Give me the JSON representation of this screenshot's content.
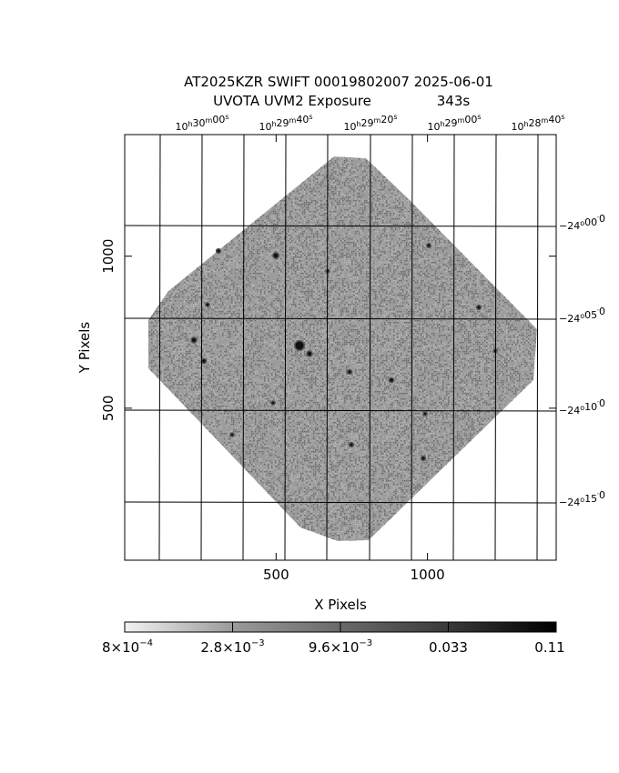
{
  "title": {
    "line1": "AT2025KZR SWIFT 00019802007 2025-06-01",
    "line2_label": "UVOTA UVM2 Exposure",
    "line2_value": "343s"
  },
  "axes": {
    "xlabel": "X Pixels",
    "ylabel": "Y Pixels",
    "x_ticks": [
      {
        "value": 500,
        "label": "500"
      },
      {
        "value": 1000,
        "label": "1000"
      }
    ],
    "y_ticks": [
      {
        "value": 500,
        "label": "500"
      },
      {
        "value": 1000,
        "label": "1000"
      }
    ],
    "x_range": [
      0,
      1425
    ],
    "y_range": [
      0,
      1400
    ]
  },
  "wcs": {
    "ra_labels": [
      {
        "h": "10",
        "m": "30",
        "s": "00"
      },
      {
        "h": "10",
        "m": "29",
        "s": "40"
      },
      {
        "h": "10",
        "m": "29",
        "s": "20"
      },
      {
        "h": "10",
        "m": "29",
        "s": "00"
      },
      {
        "h": "10",
        "m": "28",
        "s": "40"
      }
    ],
    "dec_labels": [
      {
        "deg": "−24",
        "arcmin": "00",
        "arcsec": "0"
      },
      {
        "deg": "−24",
        "arcmin": "05",
        "arcsec": "0"
      },
      {
        "deg": "−24",
        "arcmin": "10",
        "arcsec": "0"
      },
      {
        "deg": "−24",
        "arcmin": "15",
        "arcsec": "0"
      }
    ]
  },
  "colorbar": {
    "labels": [
      {
        "base": "8×10",
        "exp": "−4"
      },
      {
        "base": "2.8×10",
        "exp": "−3"
      },
      {
        "base": "9.6×10",
        "exp": "−3"
      },
      {
        "base": "0.033",
        "exp": ""
      },
      {
        "base": "0.11",
        "exp": ""
      }
    ],
    "colormap": "grayscale-inverted"
  },
  "colors": {
    "frame": "#000000",
    "noise_dark": "#6a6a6a",
    "noise_light": "#b8b8b8"
  }
}
